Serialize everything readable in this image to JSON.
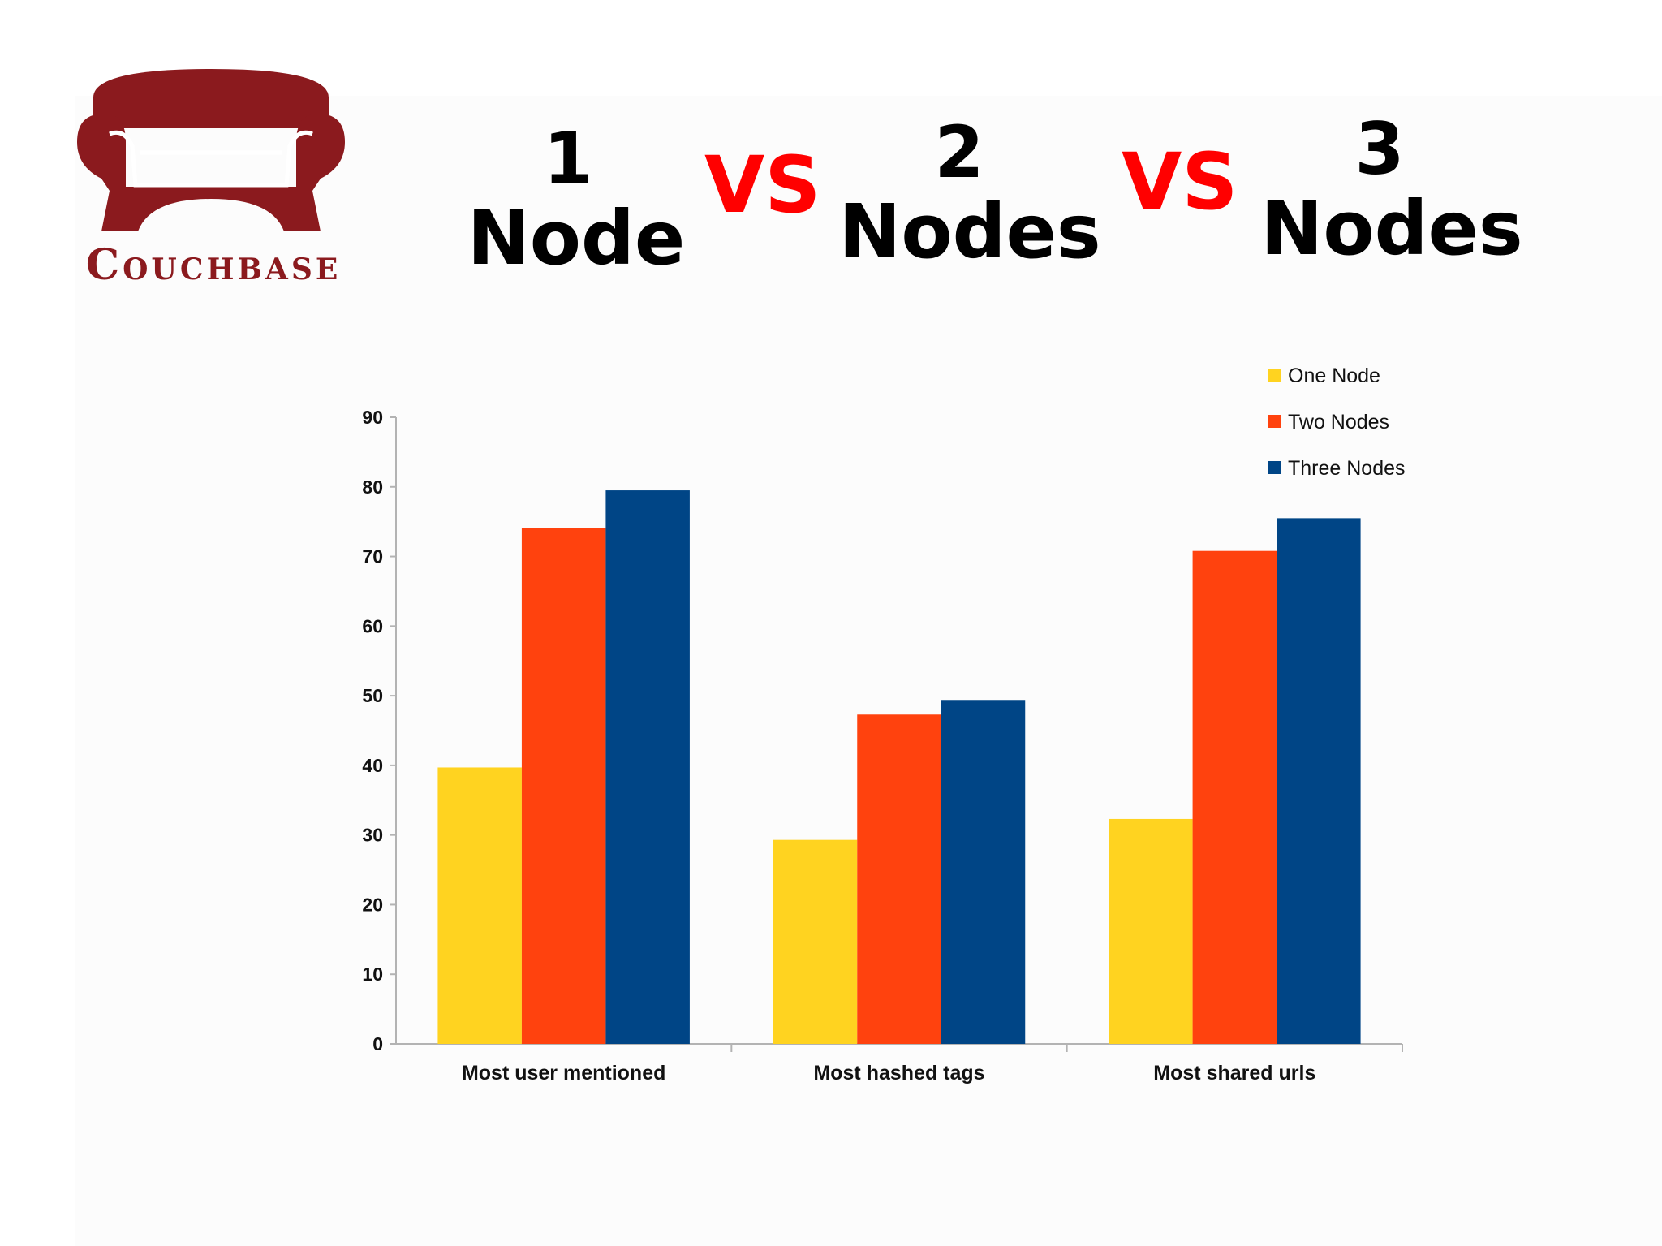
{
  "header": {
    "logo_text": "Couchbase",
    "col1_number": "1",
    "col1_word": "Node",
    "vs1": "VS",
    "col2_number": "2",
    "col2_word": "Nodes",
    "vs2": "VS",
    "col3_number": "3",
    "col3_word": "Nodes"
  },
  "colors": {
    "logo": "#8b1a1e",
    "vs": "#ff0000",
    "one_node": "#ffd320",
    "two_nodes": "#ff420e",
    "three_nodes": "#004586"
  },
  "chart_data": {
    "type": "bar",
    "title": "",
    "xlabel": "",
    "ylabel": "",
    "categories": [
      "Most user mentioned",
      "Most hashed tags",
      "Most shared urls"
    ],
    "series": [
      {
        "name": "One Node",
        "color": "#ffd320",
        "values": [
          39.7,
          29.3,
          32.3
        ]
      },
      {
        "name": "Two Nodes",
        "color": "#ff420e",
        "values": [
          74.1,
          47.3,
          70.8
        ]
      },
      {
        "name": "Three Nodes",
        "color": "#004586",
        "values": [
          79.5,
          49.4,
          75.5
        ]
      }
    ],
    "ylim": [
      0,
      90
    ],
    "yticks": [
      "0",
      "10",
      "20",
      "30",
      "40",
      "50",
      "60",
      "70",
      "80",
      "90"
    ],
    "grid": false,
    "legend_position": "top-right"
  }
}
